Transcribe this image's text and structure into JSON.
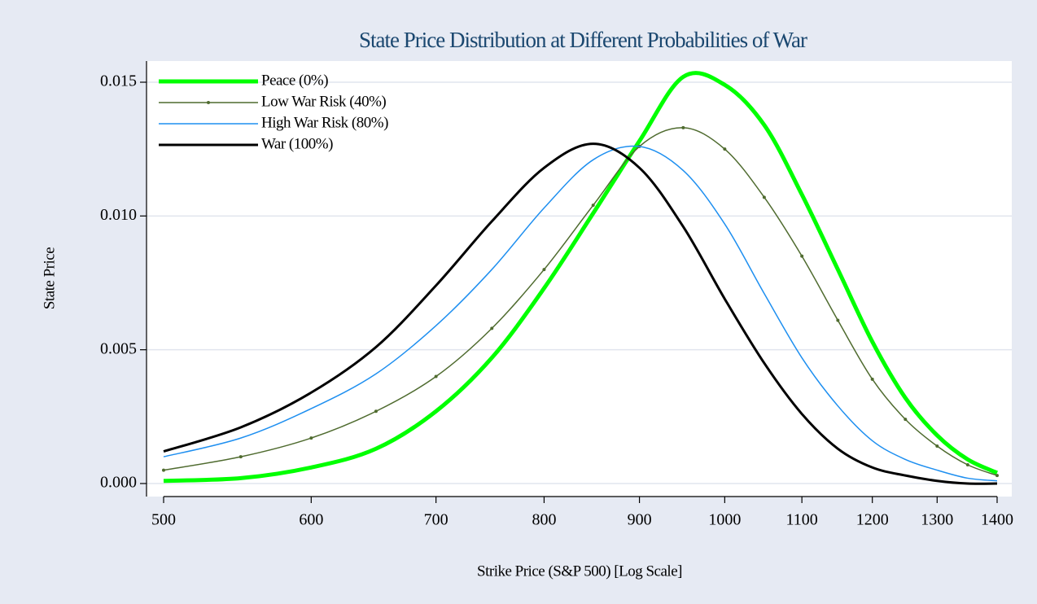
{
  "chart_data": {
    "type": "line",
    "title": "State Price Distribution at Different Probabilities of War",
    "xlabel": "Strike Price (S&P 500) [Log Scale]",
    "ylabel": "State Price",
    "xscale": "log",
    "x": [
      500,
      550,
      600,
      650,
      700,
      750,
      800,
      850,
      900,
      950,
      1000,
      1050,
      1100,
      1150,
      1200,
      1250,
      1300,
      1350,
      1400
    ],
    "series": [
      {
        "name": "Peace (0%)",
        "color": "#00ff00",
        "width": 5,
        "values": [
          0.0001,
          0.0002,
          0.0006,
          0.0013,
          0.0027,
          0.0047,
          0.0073,
          0.0101,
          0.0128,
          0.0152,
          0.0149,
          0.0134,
          0.0108,
          0.008,
          0.0053,
          0.0032,
          0.0018,
          0.0009,
          0.0004
        ]
      },
      {
        "name": "Low War Risk (40%)",
        "color": "#4f6b2f",
        "width": 1.5,
        "marker": "dot",
        "values": [
          0.0005,
          0.001,
          0.0017,
          0.0027,
          0.004,
          0.0058,
          0.008,
          0.0104,
          0.0126,
          0.0133,
          0.0125,
          0.0107,
          0.0085,
          0.0061,
          0.0039,
          0.0024,
          0.0014,
          0.0007,
          0.0003
        ]
      },
      {
        "name": "High War Risk (80%)",
        "color": "#1e8ff0",
        "width": 1.5,
        "values": [
          0.001,
          0.0017,
          0.0028,
          0.0041,
          0.0059,
          0.008,
          0.0103,
          0.0121,
          0.0126,
          0.0117,
          0.0097,
          0.0071,
          0.0047,
          0.0029,
          0.0016,
          0.0009,
          0.0005,
          0.0002,
          0.0001
        ]
      },
      {
        "name": "War (100%)",
        "color": "#000000",
        "width": 3,
        "values": [
          0.0012,
          0.0021,
          0.0034,
          0.0051,
          0.0074,
          0.0098,
          0.0118,
          0.0127,
          0.0118,
          0.0096,
          0.0069,
          0.0045,
          0.0026,
          0.0013,
          0.0006,
          0.0003,
          0.0001,
          0.0,
          0.0
        ]
      }
    ],
    "xlim": [
      500,
      1400
    ],
    "xticks": [
      500,
      600,
      700,
      800,
      900,
      1000,
      1100,
      1200,
      1300,
      1400
    ],
    "ylim": [
      0,
      0.015
    ],
    "yticks": [
      {
        "value": 0,
        "label": "0.000"
      },
      {
        "value": 0.005,
        "label": "0.005"
      },
      {
        "value": 0.01,
        "label": "0.010"
      },
      {
        "value": 0.015,
        "label": "0.015"
      }
    ],
    "grid": true,
    "legend": "upper left"
  }
}
